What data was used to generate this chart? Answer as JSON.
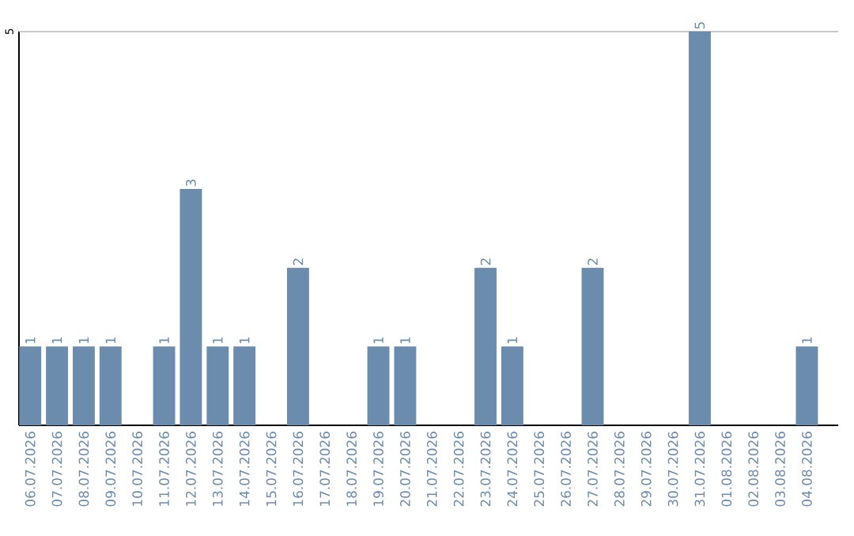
{
  "chart_data": {
    "type": "bar",
    "categories": [
      "06.07.2026",
      "07.07.2026",
      "08.07.2026",
      "09.07.2026",
      "10.07.2026",
      "11.07.2026",
      "12.07.2026",
      "13.07.2026",
      "14.07.2026",
      "15.07.2026",
      "16.07.2026",
      "17.07.2026",
      "18.07.2026",
      "19.07.2026",
      "20.07.2026",
      "21.07.2026",
      "22.07.2026",
      "23.07.2026",
      "24.07.2026",
      "25.07.2026",
      "26.07.2026",
      "27.07.2026",
      "28.07.2026",
      "29.07.2026",
      "30.07.2026",
      "31.07.2026",
      "01.08.2026",
      "02.08.2026",
      "03.08.2026",
      "04.08.2026"
    ],
    "values": [
      1,
      1,
      1,
      1,
      0,
      1,
      3,
      1,
      1,
      0,
      2,
      0,
      0,
      1,
      1,
      0,
      0,
      2,
      1,
      0,
      0,
      2,
      0,
      0,
      0,
      5,
      0,
      0,
      0,
      1
    ],
    "value_labels": [
      "1",
      "1",
      "1",
      "1",
      null,
      "1",
      "3",
      "1",
      "1",
      null,
      "2",
      null,
      null,
      "1",
      "1",
      null,
      null,
      "2",
      "1",
      null,
      null,
      "2",
      null,
      null,
      null,
      "5",
      null,
      null,
      null,
      "1"
    ],
    "color": "#6b8cac",
    "ylim": [
      0,
      5
    ],
    "yticks": [
      5
    ],
    "grid": "y"
  }
}
